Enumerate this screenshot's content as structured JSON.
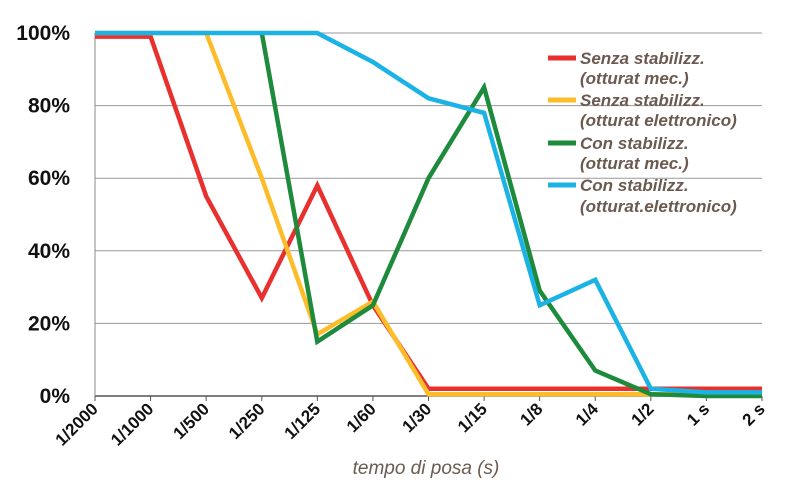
{
  "chart_data": {
    "type": "line",
    "title": "",
    "xlabel": "tempo di posa (s)",
    "ylabel": "",
    "categories": [
      "1/2000",
      "1/1000",
      "1/500",
      "1/250",
      "1/125",
      "1/60",
      "1/30",
      "1/15",
      "1/8",
      "1/4",
      "1/2",
      "1 s",
      "2 s"
    ],
    "ylim": [
      0,
      100
    ],
    "yticks": [
      0,
      20,
      40,
      60,
      80,
      100
    ],
    "ytick_labels": [
      "0%",
      "20%",
      "40%",
      "60%",
      "80%",
      "100%"
    ],
    "grid": "horizontal",
    "legend_position": "right",
    "series": [
      {
        "name_lines": [
          "Senza stabilizz.",
          "(otturat mec.)"
        ],
        "color": "#e8302e",
        "points": [
          [
            0,
            99
          ],
          [
            1,
            99
          ],
          [
            2,
            55
          ],
          [
            3,
            27
          ],
          [
            4,
            58
          ],
          [
            5,
            25
          ],
          [
            6,
            2
          ],
          [
            7,
            2
          ],
          [
            8,
            2
          ],
          [
            9,
            2
          ],
          [
            10,
            2
          ],
          [
            11,
            2
          ],
          [
            12,
            2
          ]
        ]
      },
      {
        "name_lines": [
          "Senza stabilizz.",
          "(otturat elettronico)"
        ],
        "color": "#fdbd2a",
        "points": [
          [
            0,
            100
          ],
          [
            1,
            100
          ],
          [
            2,
            100
          ],
          [
            3,
            60
          ],
          [
            4,
            17
          ],
          [
            5,
            26
          ],
          [
            6,
            0.5
          ],
          [
            7,
            0.5
          ],
          [
            8,
            0.5
          ],
          [
            9,
            0.5
          ],
          [
            10,
            0.5
          ],
          [
            11,
            0.5
          ],
          [
            12,
            0.5
          ]
        ]
      },
      {
        "name_lines": [
          "Con stabilizz.",
          " (otturat mec.)"
        ],
        "color": "#1e8a3c",
        "points": [
          [
            3,
            100
          ],
          [
            4,
            15
          ],
          [
            5,
            25
          ],
          [
            6,
            60
          ],
          [
            7,
            85
          ],
          [
            8,
            29
          ],
          [
            9,
            7
          ],
          [
            10,
            0.5
          ],
          [
            11,
            0
          ],
          [
            12,
            0
          ]
        ]
      },
      {
        "name_lines": [
          "Con stabilizz.",
          "(otturat.elettronico)"
        ],
        "color": "#1bb3e6",
        "points": [
          [
            0,
            100
          ],
          [
            1,
            100
          ],
          [
            2,
            100
          ],
          [
            3,
            100
          ],
          [
            4,
            100
          ],
          [
            5,
            92
          ],
          [
            6,
            82
          ],
          [
            7,
            78
          ],
          [
            8,
            25
          ],
          [
            9,
            32
          ],
          [
            10,
            2
          ],
          [
            11,
            1
          ],
          [
            12,
            1
          ]
        ]
      }
    ]
  }
}
